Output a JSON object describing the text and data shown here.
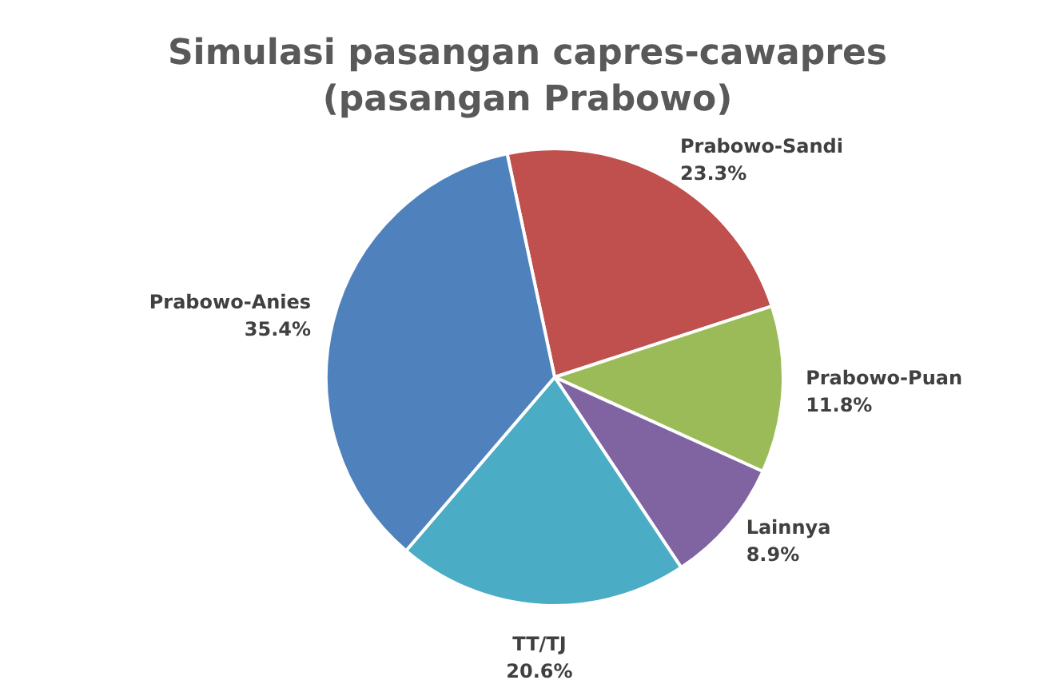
{
  "chart_data": {
    "type": "pie",
    "title": "Simulasi pasangan capres-cawapres\n(pasangan Prabowo)",
    "categories": [
      "Prabowo-Sandi",
      "Prabowo-Puan",
      "Lainnya",
      "TT/TJ",
      "Prabowo-Anies"
    ],
    "values": [
      23.3,
      11.8,
      8.9,
      20.6,
      35.4
    ],
    "colors": [
      "#c0504d",
      "#9bbb59",
      "#8064a2",
      "#4bacc6",
      "#4f81bd"
    ],
    "value_labels": [
      "23.3%",
      "11.8%",
      "8.9%",
      "20.6%",
      "35.4%"
    ],
    "legend": false
  }
}
